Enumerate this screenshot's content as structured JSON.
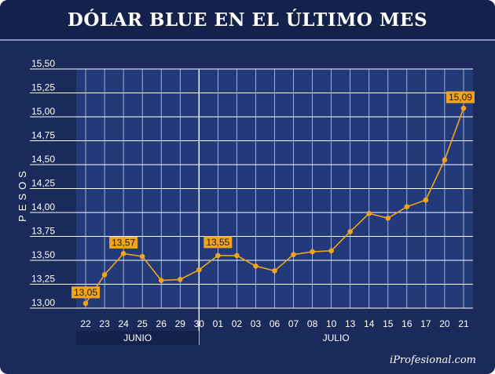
{
  "colors": {
    "background": "#1a2a5a",
    "plot_area": "#22397a",
    "month_band": "#14214a",
    "grid": "#ffffff",
    "series": "#f2a41c"
  },
  "header": {
    "title": "DÓLAR BLUE EN EL ÚLTIMO MES"
  },
  "footer": {
    "brand": "iProfesional.com"
  },
  "chart_data": {
    "type": "line",
    "title": "DÓLAR BLUE EN EL ÚLTIMO MES",
    "xlabel": "",
    "ylabel": "PESOS",
    "ylim": [
      13.0,
      15.5
    ],
    "yticks": [
      "13,00",
      "13,25",
      "13,50",
      "13,75",
      "14,00",
      "14,25",
      "14,50",
      "14,75",
      "15,00",
      "15,25",
      "15,50"
    ],
    "grid": true,
    "categories": [
      "22",
      "23",
      "24",
      "25",
      "26",
      "29",
      "30",
      "01",
      "02",
      "03",
      "06",
      "07",
      "08",
      "10",
      "13",
      "14",
      "15",
      "16",
      "17",
      "20",
      "21"
    ],
    "months": [
      {
        "label": "JUNIO",
        "from": 0,
        "to": 6
      },
      {
        "label": "JULIO",
        "from": 7,
        "to": 20
      }
    ],
    "series": [
      {
        "values": [
          13.05,
          13.35,
          13.57,
          13.54,
          13.29,
          13.3,
          13.4,
          13.55,
          13.55,
          13.44,
          13.39,
          13.56,
          13.59,
          13.6,
          13.8,
          13.99,
          13.94,
          14.06,
          14.13,
          14.55,
          15.09
        ]
      }
    ],
    "annotations": [
      {
        "index": 0,
        "text": "13,05"
      },
      {
        "index": 2,
        "text": "13,57"
      },
      {
        "index": 7,
        "text": "13,55"
      },
      {
        "index": 20,
        "text": "15,09"
      }
    ]
  }
}
